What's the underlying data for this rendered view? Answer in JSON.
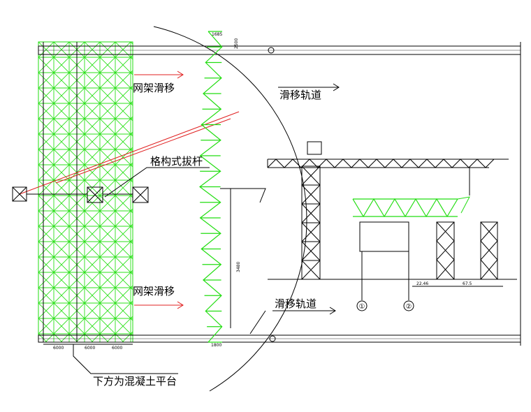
{
  "labels": {
    "grid_slide_top": "网架滑移",
    "grid_slide_bottom": "网架滑移",
    "track_top": "滑移轨道",
    "track_bottom": "滑移轨道",
    "lattice_pole": "格构式拔杆",
    "below_note": "下方为混凝土平台"
  },
  "dimensions": {
    "spans": [
      "6000",
      "6000",
      "6000"
    ],
    "base": "1800",
    "top": "1685",
    "side": "2500",
    "height": "3480",
    "d1": "22.46",
    "d2": "67.5"
  },
  "axes": [
    "①",
    "②"
  ]
}
